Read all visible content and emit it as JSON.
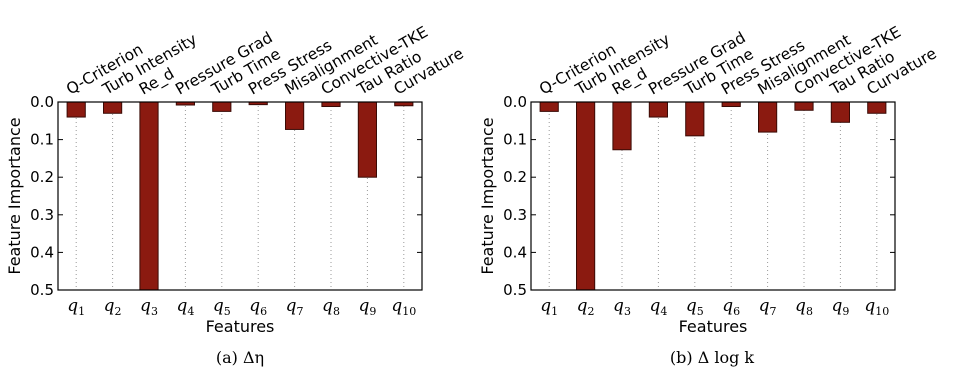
{
  "chart_data": [
    {
      "type": "bar",
      "caption": "(a) Δη",
      "categories": [
        "Q-Criterion",
        "Turb Intensity",
        "Re_d",
        "Pressure Grad",
        "Turb Time",
        "Press Stress",
        "Misalignment",
        "Convective-TKE",
        "Tau Ratio",
        "Curvature"
      ],
      "x_tick_labels": [
        {
          "base": "q",
          "sub": "1"
        },
        {
          "base": "q",
          "sub": "2"
        },
        {
          "base": "q",
          "sub": "3"
        },
        {
          "base": "q",
          "sub": "4"
        },
        {
          "base": "q",
          "sub": "5"
        },
        {
          "base": "q",
          "sub": "6"
        },
        {
          "base": "q",
          "sub": "7"
        },
        {
          "base": "q",
          "sub": "8"
        },
        {
          "base": "q",
          "sub": "9"
        },
        {
          "base": "q",
          "sub": "10"
        }
      ],
      "values": [
        0.04,
        0.03,
        0.5,
        0.008,
        0.025,
        0.007,
        0.073,
        0.012,
        0.2,
        0.01
      ],
      "xlabel": "Features",
      "ylabel": "Feature Importance",
      "ylim": [
        0.0,
        0.5
      ],
      "y_inverted": true,
      "yticks": [
        "0.0",
        "0.1",
        "0.2",
        "0.3",
        "0.4",
        "0.5"
      ],
      "grid": "vertical dotted",
      "bar_color": "#8b1a10"
    },
    {
      "type": "bar",
      "caption": "(b) Δ log k",
      "categories": [
        "Q-Criterion",
        "Turb Intensity",
        "Re_d",
        "Pressure Grad",
        "Turb Time",
        "Press Stress",
        "Misalignment",
        "Convective-TKE",
        "Tau Ratio",
        "Curvature"
      ],
      "x_tick_labels": [
        {
          "base": "q",
          "sub": "1"
        },
        {
          "base": "q",
          "sub": "2"
        },
        {
          "base": "q",
          "sub": "3"
        },
        {
          "base": "q",
          "sub": "4"
        },
        {
          "base": "q",
          "sub": "5"
        },
        {
          "base": "q",
          "sub": "6"
        },
        {
          "base": "q",
          "sub": "7"
        },
        {
          "base": "q",
          "sub": "8"
        },
        {
          "base": "q",
          "sub": "9"
        },
        {
          "base": "q",
          "sub": "10"
        }
      ],
      "values": [
        0.025,
        0.5,
        0.127,
        0.04,
        0.09,
        0.012,
        0.08,
        0.022,
        0.054,
        0.03
      ],
      "xlabel": "Features",
      "ylabel": "Feature Importance",
      "ylim": [
        0.0,
        0.5
      ],
      "y_inverted": true,
      "yticks": [
        "0.0",
        "0.1",
        "0.2",
        "0.3",
        "0.4",
        "0.5"
      ],
      "grid": "vertical dotted",
      "bar_color": "#8b1a10"
    }
  ]
}
